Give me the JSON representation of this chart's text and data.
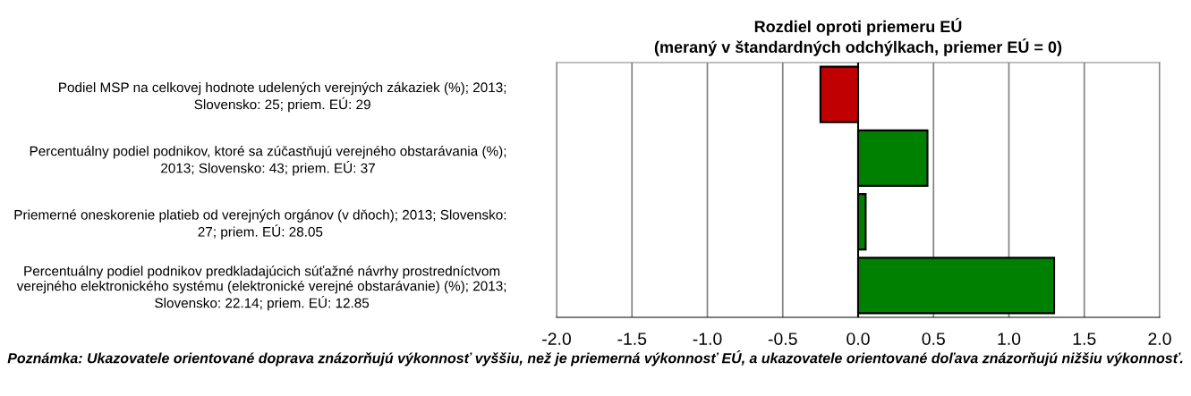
{
  "chart_data": {
    "type": "bar",
    "orientation": "horizontal",
    "title": "Rozdiel oproti priemeru EÚ\n(meraný v štandardných odchýlkach, priemer EÚ = 0)",
    "categories": [
      "Podiel MSP na celkovej hodnote udelených verejných zákaziek (%); 2013;\nSlovensko: 25; priem. EÚ: 29",
      "Percentuálny podiel podnikov, ktoré sa zúčastňujú verejného obstarávania (%);\n2013; Slovensko: 43; priem. EÚ: 37",
      "Priemerné oneskorenie platieb od verejných orgánov (v dňoch); 2013; Slovensko:\n27; priem. EÚ: 28.05",
      "Percentuálny podiel podnikov predkladajúcich súťažné návrhy prostredníctvom\nverejného elektronického systému (elektronické verejné obstarávanie) (%); 2013;\nSlovensko: 22.14; priem. EÚ: 12.85"
    ],
    "values": [
      -0.25,
      0.46,
      0.05,
      1.3
    ],
    "colors": [
      "#c00000",
      "#008000",
      "#008000",
      "#008000"
    ],
    "xlim": [
      -2,
      2
    ],
    "xticks": [
      {
        "value": -2,
        "label": "-2.0"
      },
      {
        "value": -1.5,
        "label": "-1.5"
      },
      {
        "value": -1,
        "label": "-1.0"
      },
      {
        "value": -0.5,
        "label": "-0.5"
      },
      {
        "value": 0,
        "label": "0.0"
      },
      {
        "value": 0.5,
        "label": "0.5"
      },
      {
        "value": 1,
        "label": "1.0"
      },
      {
        "value": 1.5,
        "label": "1.5"
      },
      {
        "value": 2,
        "label": "2.0"
      }
    ],
    "grid": "x",
    "annotations": [
      "Poznámka: Ukazovatele orientované doprava znázorňujú výkonnosť vyššiu, než je priemerná výkonnosť EÚ, a ukazovatele orientované doľava znázorňujú nižšiu výkonnosť."
    ]
  }
}
